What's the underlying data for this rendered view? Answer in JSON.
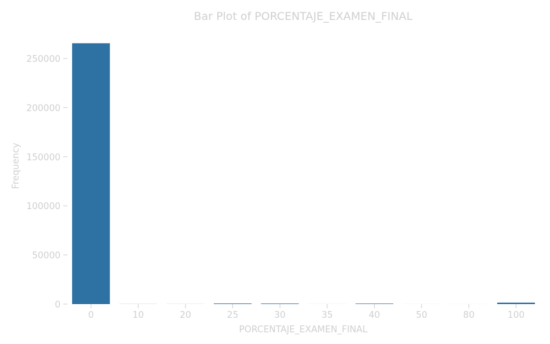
{
  "chart_data": {
    "type": "bar",
    "title": "Bar Plot of PORCENTAJE_EXAMEN_FINAL",
    "xlabel": "PORCENTAJE_EXAMEN_FINAL",
    "ylabel": "Frequency",
    "categories": [
      "0",
      "10",
      "20",
      "25",
      "30",
      "35",
      "40",
      "50",
      "80",
      "100"
    ],
    "values": [
      265500,
      80,
      60,
      600,
      550,
      40,
      500,
      30,
      20,
      1500
    ],
    "ylim": [
      0,
      278000
    ],
    "yticks": [
      0,
      50000,
      100000,
      150000,
      200000,
      250000
    ],
    "ytick_labels": [
      "0",
      "50000",
      "100000",
      "150000",
      "200000",
      "250000"
    ],
    "grid": false,
    "legend": "none",
    "colors": {
      "bar": "#2e72a4",
      "text": "#d0d0d0"
    }
  }
}
